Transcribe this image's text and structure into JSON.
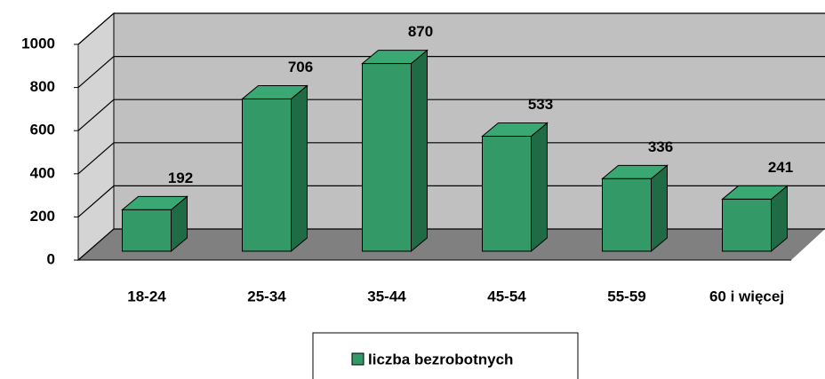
{
  "chart_data": {
    "type": "bar3d",
    "categories": [
      "18-24",
      "25-34",
      "35-44",
      "45-54",
      "55-59",
      "60 i więcej"
    ],
    "series": [
      {
        "name": "liczba bezrobotnych",
        "color": "#339966",
        "values": [
          192,
          706,
          870,
          533,
          336,
          241
        ]
      }
    ],
    "ylim": [
      0,
      1000
    ],
    "yticks": [
      0,
      200,
      400,
      600,
      800,
      1000
    ],
    "grid": true,
    "legend": "bottom"
  }
}
